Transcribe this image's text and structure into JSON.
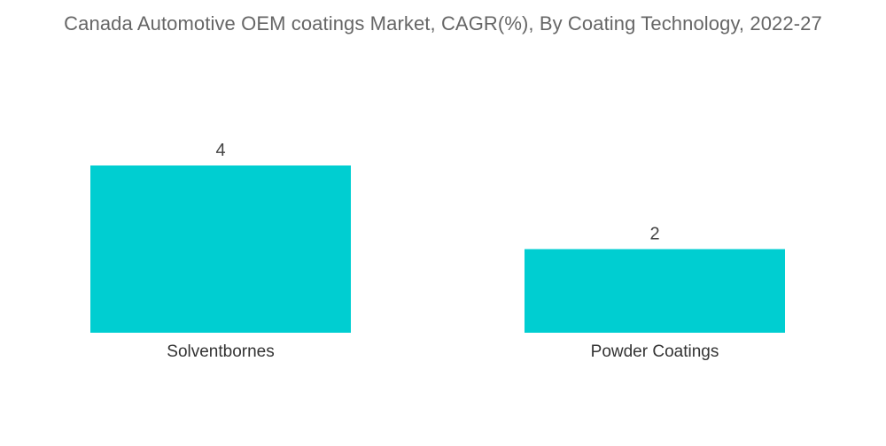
{
  "chart_data": {
    "type": "bar",
    "title": "Canada Automotive OEM coatings Market, CAGR(%), By Coating Technology, 2022-27",
    "categories": [
      "Solventbornes",
      "Powder Coatings"
    ],
    "values": [
      4,
      2
    ],
    "data_labels": [
      "4",
      "2"
    ],
    "xlabel": "",
    "ylabel": "",
    "ylim": [
      0,
      4
    ],
    "grid": false,
    "legend": "none",
    "bar_color": "#00CED1"
  }
}
